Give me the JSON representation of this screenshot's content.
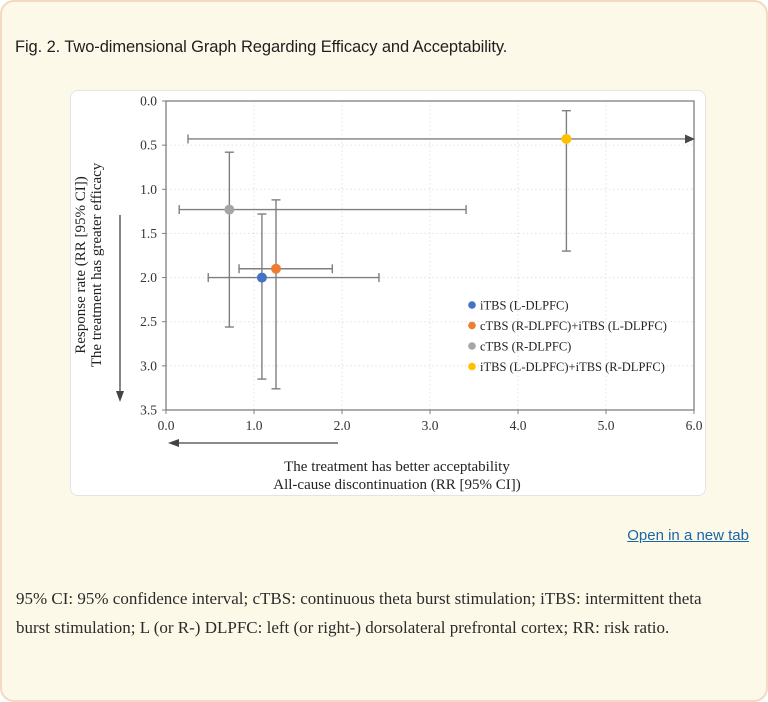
{
  "page": {
    "title": "Fig. 2. Two-dimensional Graph Regarding Efficacy and Acceptability.",
    "link_label": "Open in a new tab",
    "link_color": "#1a66a8",
    "footnote": "95% CI: 95% confidence interval; cTBS: continuous theta burst stimulation; iTBS: intermittent theta burst stimulation; L (or R-) DLPFC: left (or right-) dorsolateral prefrontal cortex; RR: risk ratio."
  },
  "chart_data": {
    "type": "scatter",
    "title": "",
    "xlabel_lines": [
      "The treatment has better acceptability",
      "All-cause discontinuation (RR [95% CI])"
    ],
    "ylabel_lines": [
      "Response rate (RR [95% CI])",
      "The treatment has greater efficacy"
    ],
    "xlim": [
      0,
      6
    ],
    "ylim": [
      0,
      3.5
    ],
    "y_axis_inverted": true,
    "x_tick_labels": [
      "0.0",
      "1.0",
      "2.0",
      "3.0",
      "4.0",
      "5.0",
      "6.0"
    ],
    "y_tick_labels": [
      "0.0",
      "0.5",
      "1.0",
      "1.5",
      "2.0",
      "2.5",
      "3.0",
      "3.5"
    ],
    "grid": "dotted",
    "legend_position": "inside-right",
    "error_bar_color": "#7f7f7f",
    "series": [
      {
        "name": "iTBS (L-DLPFC)",
        "color": "#4472C4",
        "x": 1.09,
        "y": 2.0,
        "x_ci": [
          0.48,
          2.42
        ],
        "y_ci": [
          1.28,
          3.15
        ],
        "x_ci_open_right": false
      },
      {
        "name": "cTBS (R-DLPFC)+iTBS (L-DLPFC)",
        "color": "#ED7D31",
        "x": 1.25,
        "y": 1.9,
        "x_ci": [
          0.83,
          1.89
        ],
        "y_ci": [
          1.12,
          3.26
        ],
        "x_ci_open_right": false
      },
      {
        "name": "cTBS (R-DLPFC)",
        "color": "#A5A5A5",
        "x": 0.72,
        "y": 1.23,
        "x_ci": [
          0.15,
          3.41
        ],
        "y_ci": [
          0.58,
          2.56
        ],
        "x_ci_open_right": false
      },
      {
        "name": "iTBS (L-DLPFC)+iTBS (R-DLPFC)",
        "color": "#FFC000",
        "x": 4.55,
        "y": 0.43,
        "x_ci": [
          0.25,
          6.0
        ],
        "y_ci": [
          0.11,
          1.7
        ],
        "x_ci_open_right": true
      }
    ]
  }
}
